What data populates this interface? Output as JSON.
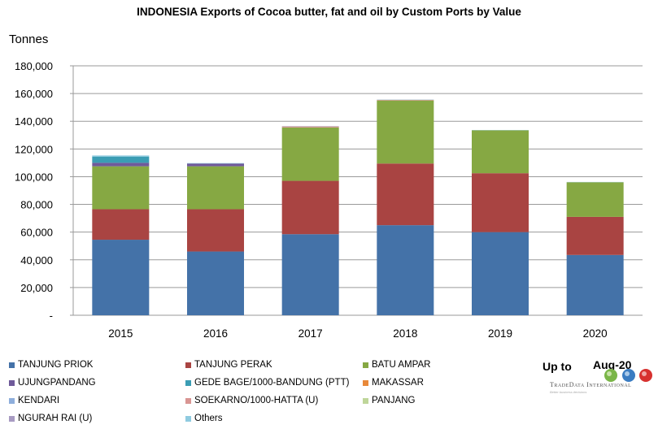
{
  "chart_data": {
    "type": "bar",
    "stacked": true,
    "title": "INDONESIA Exports of Cocoa butter, fat and oil by Custom Ports by Value",
    "ylabel": "Tonnes",
    "xlabel": "",
    "categories": [
      "2015",
      "2016",
      "2017",
      "2018",
      "2019",
      "2020"
    ],
    "ylim": [
      0,
      180000
    ],
    "yticks": [
      0,
      20000,
      40000,
      60000,
      80000,
      100000,
      120000,
      140000,
      160000,
      180000
    ],
    "ytick_labels": [
      "-",
      "20,000",
      "40,000",
      "60,000",
      "80,000",
      "100,000",
      "120,000",
      "140,000",
      "160,000",
      "180,000"
    ],
    "grid": true,
    "legend_position": "bottom",
    "series": [
      {
        "name": "TANJUNG PRIOK",
        "color": "#4472a8",
        "values": [
          54500,
          46000,
          58500,
          65000,
          60000,
          43500
        ]
      },
      {
        "name": "TANJUNG PERAK",
        "color": "#a94442",
        "values": [
          22000,
          30500,
          38500,
          44500,
          42500,
          27500
        ]
      },
      {
        "name": "BATU AMPAR",
        "color": "#86a843",
        "values": [
          31000,
          31000,
          38500,
          45500,
          31000,
          25000
        ]
      },
      {
        "name": "UJUNGPANDANG",
        "color": "#6f5a9a",
        "values": [
          2500,
          2000,
          0,
          0,
          0,
          0
        ]
      },
      {
        "name": "GEDE BAGE/1000-BANDUNG (PTT)",
        "color": "#3b9db4",
        "values": [
          4500,
          0,
          0,
          0,
          0,
          0
        ]
      },
      {
        "name": "MAKASSAR",
        "color": "#e8893a",
        "values": [
          0,
          0,
          0,
          0,
          0,
          0
        ]
      },
      {
        "name": "KENDARI",
        "color": "#8eaedc",
        "values": [
          0,
          0,
          0,
          0,
          0,
          0
        ]
      },
      {
        "name": "SOEKARNO/1000-HATTA (U)",
        "color": "#d99593",
        "values": [
          0,
          0,
          800,
          500,
          0,
          0
        ]
      },
      {
        "name": "PANJANG",
        "color": "#bfd69a",
        "values": [
          0,
          0,
          0,
          0,
          0,
          0
        ]
      },
      {
        "name": "NGURAH RAI (U)",
        "color": "#a89bc2",
        "values": [
          0,
          0,
          0,
          0,
          0,
          0
        ]
      },
      {
        "name": "Others",
        "color": "#8fcbe0",
        "values": [
          800,
          300,
          200,
          200,
          200,
          200
        ]
      }
    ],
    "note_label": "Up to",
    "note_period": "Aug-20"
  },
  "branding": {
    "logo_text": "TradeData International",
    "logo_sub": "Better business decisions"
  }
}
